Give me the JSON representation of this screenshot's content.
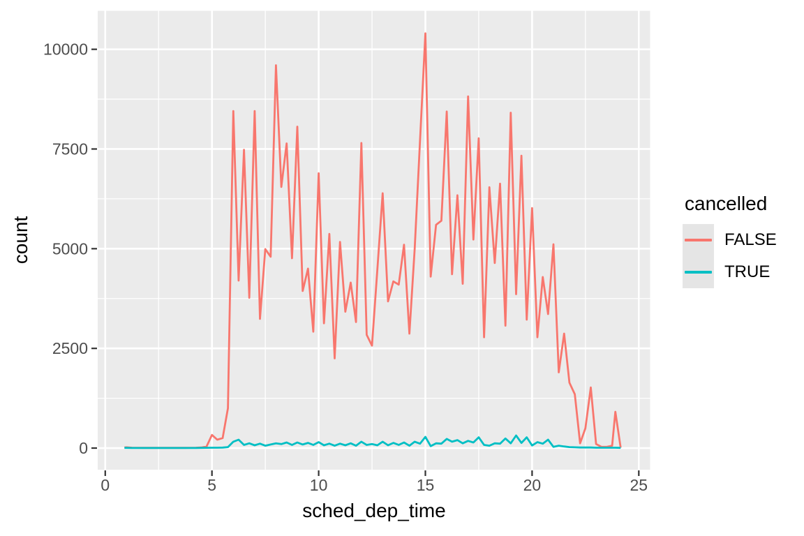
{
  "chart_data": {
    "type": "line",
    "subtype": "freqpoly",
    "title": "",
    "xlabel": "sched_dep_time",
    "ylabel": "count",
    "grid": true,
    "panel_bg": "#EBEBEB",
    "grid_color": "#FFFFFF",
    "tick_mark_color": "#333333",
    "tick_label_color": "#4D4D4D",
    "x_axis": {
      "lim": [
        -0.353,
        25.53
      ],
      "ticks": [
        0,
        5,
        10,
        15,
        20,
        25
      ],
      "tick_labels": [
        "0",
        "5",
        "10",
        "15",
        "20",
        "25"
      ],
      "minor_ticks": [
        2.5,
        7.5,
        12.5,
        17.5,
        22.5
      ]
    },
    "y_axis": {
      "lim": [
        -542,
        10965
      ],
      "ticks": [
        0,
        2500,
        5000,
        7500,
        10000
      ],
      "tick_labels": [
        "0",
        "2500",
        "5000",
        "7500",
        "10000"
      ],
      "minor_ticks": [
        1250,
        3750,
        6250,
        8750
      ]
    },
    "legend": {
      "title": "cancelled",
      "position": "right",
      "items": [
        {
          "label": "FALSE",
          "color": "#F8766D"
        },
        {
          "label": "TRUE",
          "color": "#00BFC4"
        }
      ]
    },
    "x": [
      0.9,
      1,
      1.25,
      1.5,
      1.75,
      2,
      2.25,
      2.5,
      2.75,
      3,
      3.25,
      3.5,
      3.75,
      4,
      4.25,
      4.5,
      4.75,
      5,
      5.25,
      5.5,
      5.75,
      6,
      6.25,
      6.5,
      6.75,
      7,
      7.25,
      7.5,
      7.75,
      8,
      8.25,
      8.5,
      8.75,
      9,
      9.25,
      9.5,
      9.75,
      10,
      10.25,
      10.5,
      10.75,
      11,
      11.25,
      11.5,
      11.75,
      12,
      12.25,
      12.5,
      12.75,
      13,
      13.25,
      13.5,
      13.75,
      14,
      14.25,
      14.5,
      14.75,
      15,
      15.25,
      15.5,
      15.75,
      16,
      16.25,
      16.5,
      16.75,
      17,
      17.25,
      17.5,
      17.75,
      18,
      18.25,
      18.5,
      18.75,
      19,
      19.25,
      19.5,
      19.75,
      20,
      20.25,
      20.5,
      20.75,
      21,
      21.25,
      21.5,
      21.75,
      22,
      22.25,
      22.5,
      22.75,
      23,
      23.25,
      23.5,
      23.75,
      23.9,
      24.15
    ],
    "series": [
      {
        "name": "FALSE",
        "color": "#F8766D",
        "values": [
          15,
          20,
          10,
          8,
          5,
          5,
          5,
          5,
          5,
          5,
          5,
          5,
          5,
          8,
          10,
          15,
          40,
          330,
          210,
          250,
          1000,
          8450,
          4200,
          7480,
          3770,
          8450,
          3240,
          4990,
          4800,
          9600,
          6550,
          7640,
          4760,
          8060,
          3940,
          4500,
          2920,
          6890,
          3130,
          5370,
          2250,
          5170,
          3420,
          4150,
          3160,
          7650,
          2840,
          2570,
          4480,
          6390,
          3680,
          4180,
          4100,
          5100,
          2870,
          5000,
          7700,
          10400,
          4300,
          5600,
          5700,
          8440,
          4360,
          6340,
          4120,
          8820,
          5230,
          7770,
          2780,
          6540,
          4640,
          6630,
          3070,
          8410,
          3860,
          7330,
          3220,
          6020,
          2780,
          4290,
          3360,
          5110,
          1900,
          2870,
          1640,
          1350,
          120,
          500,
          1520,
          100,
          30,
          30,
          60,
          910,
          10
        ]
      },
      {
        "name": "TRUE",
        "color": "#00BFC4",
        "values": [
          5,
          5,
          3,
          3,
          3,
          3,
          3,
          3,
          3,
          3,
          3,
          3,
          3,
          3,
          3,
          5,
          8,
          10,
          10,
          12,
          25,
          160,
          210,
          80,
          120,
          70,
          110,
          60,
          90,
          120,
          100,
          140,
          80,
          140,
          90,
          130,
          80,
          150,
          70,
          110,
          60,
          110,
          70,
          120,
          60,
          160,
          80,
          100,
          70,
          160,
          70,
          130,
          80,
          140,
          60,
          160,
          110,
          280,
          50,
          120,
          110,
          230,
          160,
          200,
          120,
          180,
          140,
          270,
          80,
          60,
          120,
          110,
          240,
          120,
          315,
          130,
          270,
          65,
          150,
          110,
          210,
          30,
          60,
          40,
          25,
          20,
          15,
          15,
          15,
          10,
          10,
          10,
          10,
          10,
          5
        ]
      }
    ]
  }
}
